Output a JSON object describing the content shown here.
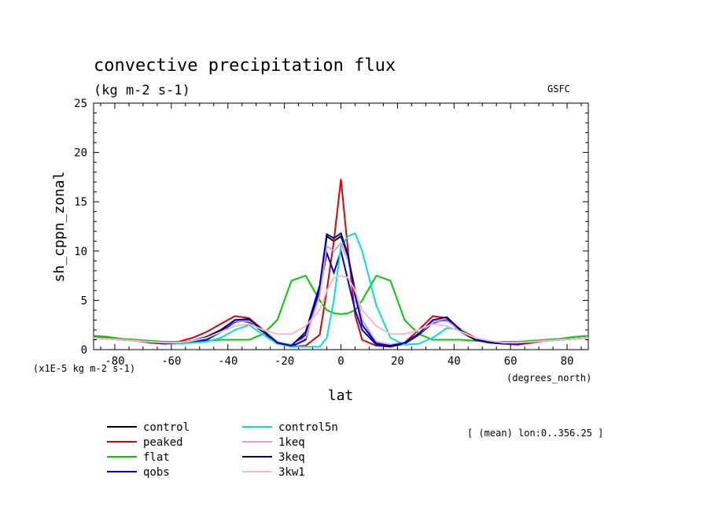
{
  "chart_data": {
    "type": "line",
    "title": "convective precipitation flux",
    "subtitle": "(kg m-2 s-1)",
    "credit": "GSFC",
    "xlabel": "lat",
    "ylabel": "sh_cppn_zonal",
    "x_units": "(degrees_north)",
    "y_units": "(x1E-5 kg m-2 s-1)",
    "annotation": "[ (mean) lon:0..356.25 ]",
    "xlim": [
      -87.5,
      87.5
    ],
    "ylim": [
      0,
      25
    ],
    "x_ticks": [
      -80,
      -60,
      -40,
      -20,
      0,
      20,
      40,
      60,
      80
    ],
    "y_ticks": [
      0,
      5,
      10,
      15,
      20,
      25
    ],
    "grid": false,
    "legend_position": "bottom",
    "x": [
      -87.5,
      -82.5,
      -77.5,
      -72.5,
      -67.5,
      -62.5,
      -57.5,
      -52.5,
      -47.5,
      -42.5,
      -37.5,
      -32.5,
      -27.5,
      -22.5,
      -17.5,
      -12.5,
      -7.5,
      -5,
      -2.5,
      0,
      2.5,
      5,
      7.5,
      12.5,
      17.5,
      22.5,
      27.5,
      32.5,
      37.5,
      42.5,
      47.5,
      52.5,
      57.5,
      62.5,
      67.5,
      72.5,
      77.5,
      82.5,
      87.5
    ],
    "series": [
      {
        "name": "control",
        "color": "#000000",
        "values": [
          1.2,
          1.1,
          1.0,
          0.9,
          0.8,
          0.6,
          0.7,
          0.9,
          1.3,
          2.0,
          3.0,
          2.8,
          1.8,
          0.6,
          0.4,
          1.5,
          6.0,
          11.5,
          11.0,
          11.5,
          9.5,
          6.0,
          3.0,
          0.7,
          0.4,
          0.6,
          1.5,
          2.8,
          3.0,
          1.8,
          1.0,
          0.8,
          0.6,
          0.6,
          0.8,
          0.9,
          1.0,
          1.1,
          1.2
        ]
      },
      {
        "name": "peaked",
        "color": "#e00000",
        "values": [
          1.3,
          1.2,
          1.0,
          0.9,
          0.7,
          0.6,
          0.8,
          1.2,
          1.8,
          2.6,
          3.4,
          3.2,
          2.0,
          0.7,
          0.3,
          0.4,
          1.5,
          6.0,
          11.0,
          17.3,
          10.0,
          3.5,
          1.0,
          0.4,
          0.3,
          0.7,
          2.0,
          3.4,
          3.2,
          2.0,
          1.2,
          0.8,
          0.6,
          0.5,
          0.7,
          0.9,
          1.0,
          1.1,
          1.2
        ]
      },
      {
        "name": "flat",
        "color": "#00cc00",
        "values": [
          1.4,
          1.3,
          1.1,
          1.0,
          0.9,
          0.8,
          0.8,
          0.8,
          0.9,
          1.0,
          1.0,
          1.0,
          1.6,
          3.0,
          7.0,
          7.5,
          5.0,
          4.0,
          3.7,
          3.6,
          3.7,
          4.0,
          5.0,
          7.5,
          7.0,
          3.0,
          1.6,
          1.0,
          1.0,
          1.0,
          0.9,
          0.8,
          0.8,
          0.8,
          0.9,
          1.0,
          1.1,
          1.3,
          1.4
        ]
      },
      {
        "name": "qobs",
        "color": "#0000dd",
        "values": [
          1.2,
          1.1,
          1.0,
          0.9,
          0.8,
          0.6,
          0.7,
          0.8,
          1.0,
          1.8,
          2.8,
          3.0,
          2.0,
          0.8,
          0.3,
          1.0,
          6.0,
          9.8,
          7.8,
          10.0,
          7.0,
          4.0,
          2.0,
          0.5,
          0.3,
          0.6,
          1.5,
          2.7,
          3.0,
          2.0,
          1.0,
          0.7,
          0.6,
          0.7,
          0.8,
          0.9,
          1.0,
          1.1,
          1.2
        ]
      },
      {
        "name": "control5n",
        "color": "#00e0e0",
        "values": [
          1.2,
          1.1,
          1.0,
          0.9,
          0.8,
          0.6,
          0.6,
          0.7,
          0.8,
          1.2,
          2.0,
          2.5,
          1.5,
          0.6,
          0.3,
          0.3,
          0.3,
          1.2,
          5.0,
          10.5,
          11.5,
          11.8,
          10.0,
          4.5,
          1.2,
          0.5,
          0.6,
          1.2,
          2.2,
          2.0,
          1.0,
          0.8,
          0.7,
          0.6,
          0.8,
          0.9,
          1.0,
          1.1,
          1.2
        ]
      },
      {
        "name": "1keq",
        "color": "#d8a0e0",
        "values": [
          1.2,
          1.1,
          1.0,
          0.9,
          0.8,
          0.7,
          0.7,
          0.9,
          1.2,
          1.9,
          2.9,
          2.9,
          2.0,
          0.8,
          0.5,
          1.2,
          5.5,
          10.5,
          10.0,
          10.8,
          9.0,
          5.8,
          3.0,
          0.8,
          0.5,
          0.7,
          1.6,
          2.8,
          2.9,
          1.9,
          1.1,
          0.8,
          0.7,
          0.7,
          0.8,
          0.9,
          1.0,
          1.1,
          1.2
        ]
      },
      {
        "name": "3keq",
        "color": "#000090",
        "values": [
          1.2,
          1.1,
          1.0,
          0.9,
          0.8,
          0.6,
          0.7,
          0.9,
          1.2,
          1.9,
          3.0,
          3.1,
          1.9,
          0.7,
          0.4,
          1.8,
          6.5,
          11.7,
          11.3,
          11.8,
          9.6,
          5.5,
          2.5,
          0.6,
          0.4,
          0.7,
          1.6,
          3.0,
          3.3,
          1.9,
          1.0,
          0.8,
          0.6,
          0.6,
          0.8,
          0.9,
          1.0,
          1.1,
          1.2
        ]
      },
      {
        "name": "3kw1",
        "color": "#ffb8c8",
        "values": [
          1.2,
          1.1,
          1.0,
          0.9,
          0.8,
          0.7,
          0.7,
          0.9,
          1.2,
          1.8,
          2.4,
          2.6,
          2.0,
          1.6,
          1.6,
          2.4,
          4.0,
          6.0,
          7.3,
          7.5,
          7.3,
          6.0,
          4.0,
          2.4,
          1.6,
          1.6,
          2.0,
          2.6,
          2.4,
          1.8,
          1.2,
          0.9,
          0.7,
          0.7,
          0.8,
          0.9,
          1.0,
          1.1,
          1.2
        ]
      }
    ]
  }
}
